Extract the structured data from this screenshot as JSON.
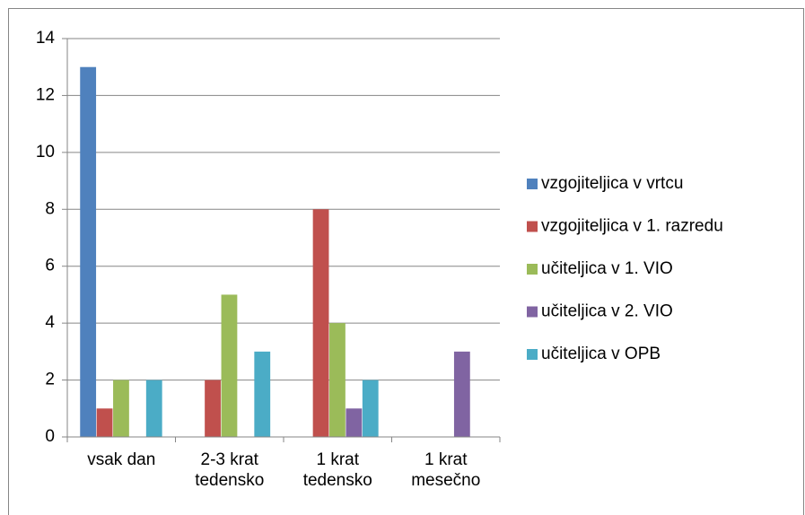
{
  "chart_data": {
    "type": "bar",
    "categories": [
      "vsak dan",
      "2-3 krat tedensko",
      "1 krat tedensko",
      "1 krat mesečno"
    ],
    "series": [
      {
        "name": "vzgojiteljica v vrtcu",
        "color": "#4f81bd",
        "values": [
          13,
          0,
          0,
          0
        ]
      },
      {
        "name": "vzgojiteljica v 1. razredu",
        "color": "#c0504d",
        "values": [
          1,
          2,
          8,
          0
        ]
      },
      {
        "name": "učiteljica v 1. VIO",
        "color": "#9bbb59",
        "values": [
          2,
          5,
          4,
          0
        ]
      },
      {
        "name": "učiteljica v 2. VIO",
        "color": "#8064a2",
        "values": [
          0,
          0,
          1,
          3
        ]
      },
      {
        "name": "učiteljica v OPB",
        "color": "#4bacc6",
        "values": [
          2,
          3,
          2,
          0
        ]
      }
    ],
    "ylim": [
      0,
      14
    ],
    "yticks": [
      0,
      2,
      4,
      6,
      8,
      10,
      12,
      14
    ],
    "grid": true,
    "legend": "right"
  }
}
